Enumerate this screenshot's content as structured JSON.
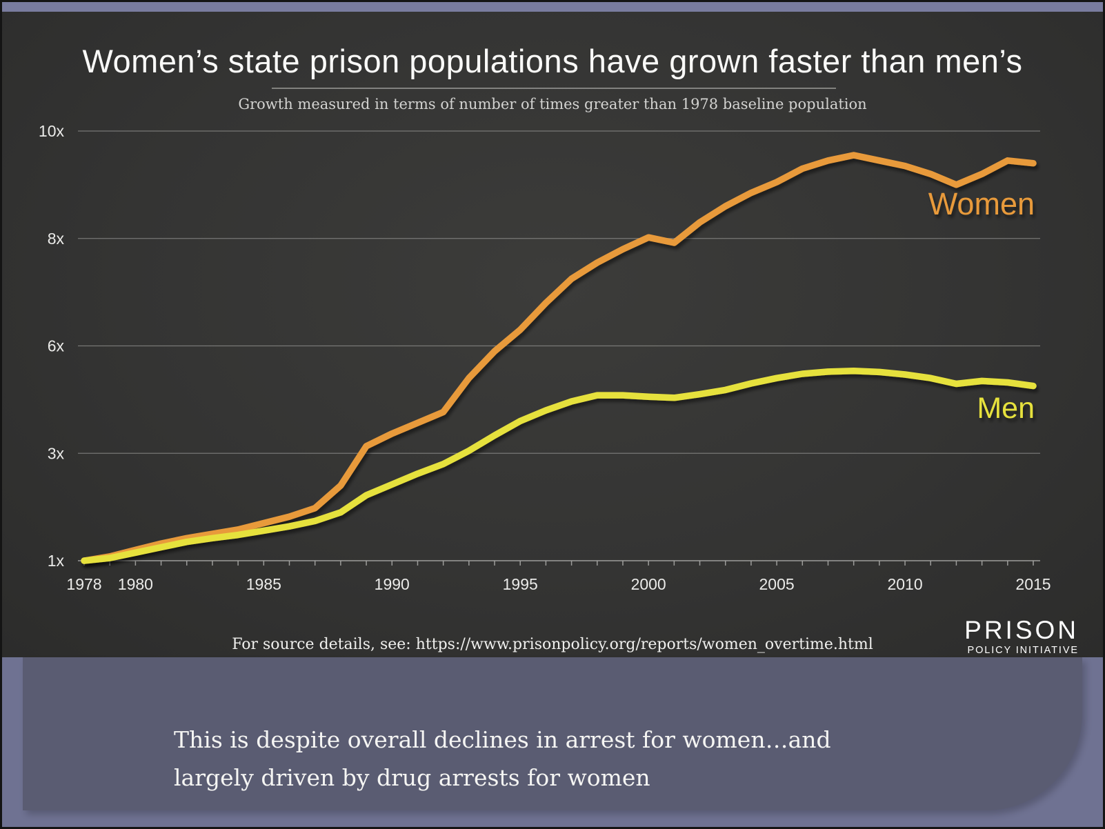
{
  "chart": {
    "title": "Women’s state prison populations have grown faster than men’s",
    "subtitle": "Growth measured in terms of number of times greater than 1978 baseline population",
    "source_note": "For source details, see: https://www.prisonpolicy.org/reports/women_overtime.html",
    "logo": {
      "line1": "PRISON",
      "line2": "POLICY INITIATIVE"
    }
  },
  "slide": {
    "caption_line1": "This is despite overall declines in arrest for women…and",
    "caption_line2": "largely driven by drug arrests for women"
  },
  "chart_data": {
    "type": "line",
    "title": "Women’s state prison populations have grown faster than men’s",
    "subtitle": "Growth measured in terms of number of times greater than 1978 baseline population",
    "x": [
      1978,
      1979,
      1980,
      1981,
      1982,
      1983,
      1984,
      1985,
      1986,
      1987,
      1988,
      1989,
      1990,
      1991,
      1992,
      1993,
      1994,
      1995,
      1996,
      1997,
      1998,
      1999,
      2000,
      2001,
      2002,
      2003,
      2004,
      2005,
      2006,
      2007,
      2008,
      2009,
      2010,
      2011,
      2012,
      2013,
      2014,
      2015
    ],
    "series": [
      {
        "name": "Women",
        "color": "#e89a3b",
        "values": [
          1.0,
          1.08,
          1.2,
          1.32,
          1.42,
          1.5,
          1.58,
          1.7,
          1.82,
          1.98,
          2.4,
          3.2,
          3.55,
          3.85,
          4.15,
          5.1,
          5.85,
          6.3,
          6.8,
          7.25,
          7.55,
          7.8,
          8.02,
          7.92,
          8.3,
          8.6,
          8.85,
          9.05,
          9.3,
          9.45,
          9.55,
          9.45,
          9.35,
          9.2,
          9.0,
          9.2,
          9.45,
          9.4
        ]
      },
      {
        "name": "Men",
        "color": "#e6e13d",
        "values": [
          1.0,
          1.05,
          1.15,
          1.25,
          1.35,
          1.42,
          1.48,
          1.56,
          1.64,
          1.74,
          1.9,
          2.22,
          2.42,
          2.62,
          2.8,
          3.07,
          3.5,
          3.9,
          4.2,
          4.45,
          4.62,
          4.62,
          4.58,
          4.55,
          4.65,
          4.77,
          4.95,
          5.1,
          5.22,
          5.28,
          5.3,
          5.27,
          5.2,
          5.1,
          4.94,
          5.02,
          4.98,
          4.88
        ]
      }
    ],
    "y_axis": {
      "ticks": [
        {
          "label": "1x",
          "value": 1
        },
        {
          "label": "3x",
          "value": 3
        },
        {
          "label": "6x",
          "value": 6
        },
        {
          "label": "8x",
          "value": 8
        },
        {
          "label": "10x",
          "value": 10
        }
      ],
      "note": "gridlines equally spaced at these labeled values"
    },
    "x_axis": {
      "labeled_years": [
        1978,
        1980,
        1985,
        1990,
        1995,
        2000,
        2005,
        2010,
        2015
      ]
    },
    "legend_position": "inline labels at right end of each line",
    "grid": true
  }
}
